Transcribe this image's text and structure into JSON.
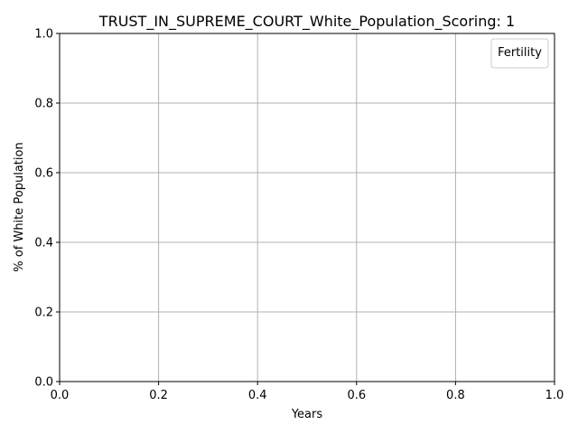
{
  "chart_data": {
    "type": "line",
    "title": "TRUST_IN_SUPREME_COURT_White_Population_Scoring: 1",
    "xlabel": "Years",
    "ylabel": "% of White Population",
    "xlim": [
      0.0,
      1.0
    ],
    "ylim": [
      0.0,
      1.0
    ],
    "xticks": [
      0.0,
      0.2,
      0.4,
      0.6,
      0.8,
      1.0
    ],
    "yticks": [
      0.0,
      0.2,
      0.4,
      0.6,
      0.8,
      1.0
    ],
    "xtick_labels": [
      "0.0",
      "0.2",
      "0.4",
      "0.6",
      "0.8",
      "1.0"
    ],
    "ytick_labels": [
      "0.0",
      "0.2",
      "0.4",
      "0.6",
      "0.8",
      "1.0"
    ],
    "grid": true,
    "legend": {
      "title": "Fertility",
      "position": "top-right",
      "entries": []
    },
    "series": []
  },
  "colors": {
    "grid": "#b0b0b0",
    "axes": "#000000",
    "legend_border": "#cccccc"
  }
}
